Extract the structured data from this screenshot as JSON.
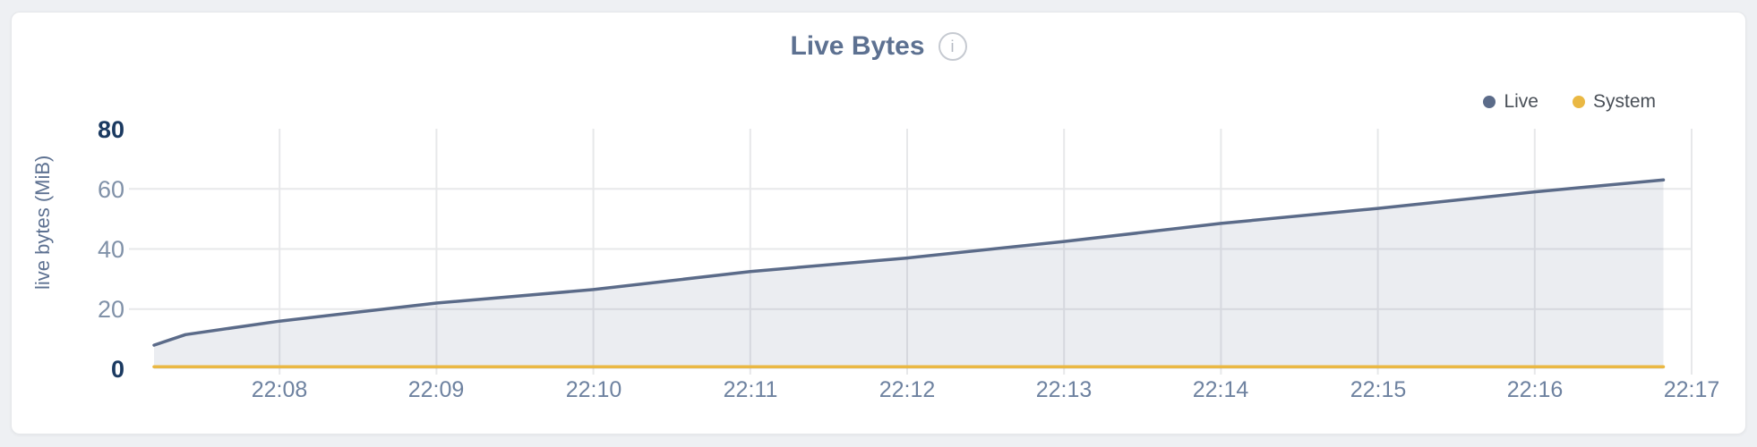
{
  "page": {
    "background": "#eef0f3"
  },
  "card": {
    "background": "#ffffff",
    "border_color": "#e5e7ea"
  },
  "header": {
    "title": "Live Bytes",
    "info_icon_glyph": "i"
  },
  "chart_data": {
    "type": "area",
    "title": "Live Bytes",
    "xlabel": "",
    "ylabel": "live bytes (MiB)",
    "ylim": [
      0,
      80
    ],
    "y_ticks": [
      0,
      20,
      40,
      60,
      80
    ],
    "y_tick_display": [
      "0",
      "20",
      "40",
      "60",
      "80"
    ],
    "y_grid_values": [
      20,
      40,
      60
    ],
    "x_tick_labels": [
      "22:08",
      "22:09",
      "22:10",
      "22:11",
      "22:12",
      "22:13",
      "22:14",
      "22:15",
      "22:16",
      "22:17"
    ],
    "x_tick_minutes": [
      1,
      2,
      3,
      4,
      5,
      6,
      7,
      8,
      9,
      10
    ],
    "x_domain": [
      "22:07:00",
      "22:17:00"
    ],
    "grid": true,
    "grid_color": "#e7e8ea",
    "legend_position": "top-right",
    "series": [
      {
        "name": "Live",
        "color": "#5b6b89",
        "fill_color": "rgba(91,107,137,0.12)",
        "x_minutes": [
          0.2,
          0.4,
          1,
          2,
          3,
          4,
          5,
          6,
          7,
          8,
          9,
          9.82
        ],
        "values": [
          8,
          11.5,
          16,
          22,
          26.5,
          32.5,
          37,
          42.5,
          48.5,
          53.5,
          59,
          63
        ]
      },
      {
        "name": "System",
        "color": "#eab843",
        "fill_color": "none",
        "x_minutes": [
          0.2,
          9.82
        ],
        "values": [
          0.8,
          0.8
        ]
      }
    ]
  }
}
